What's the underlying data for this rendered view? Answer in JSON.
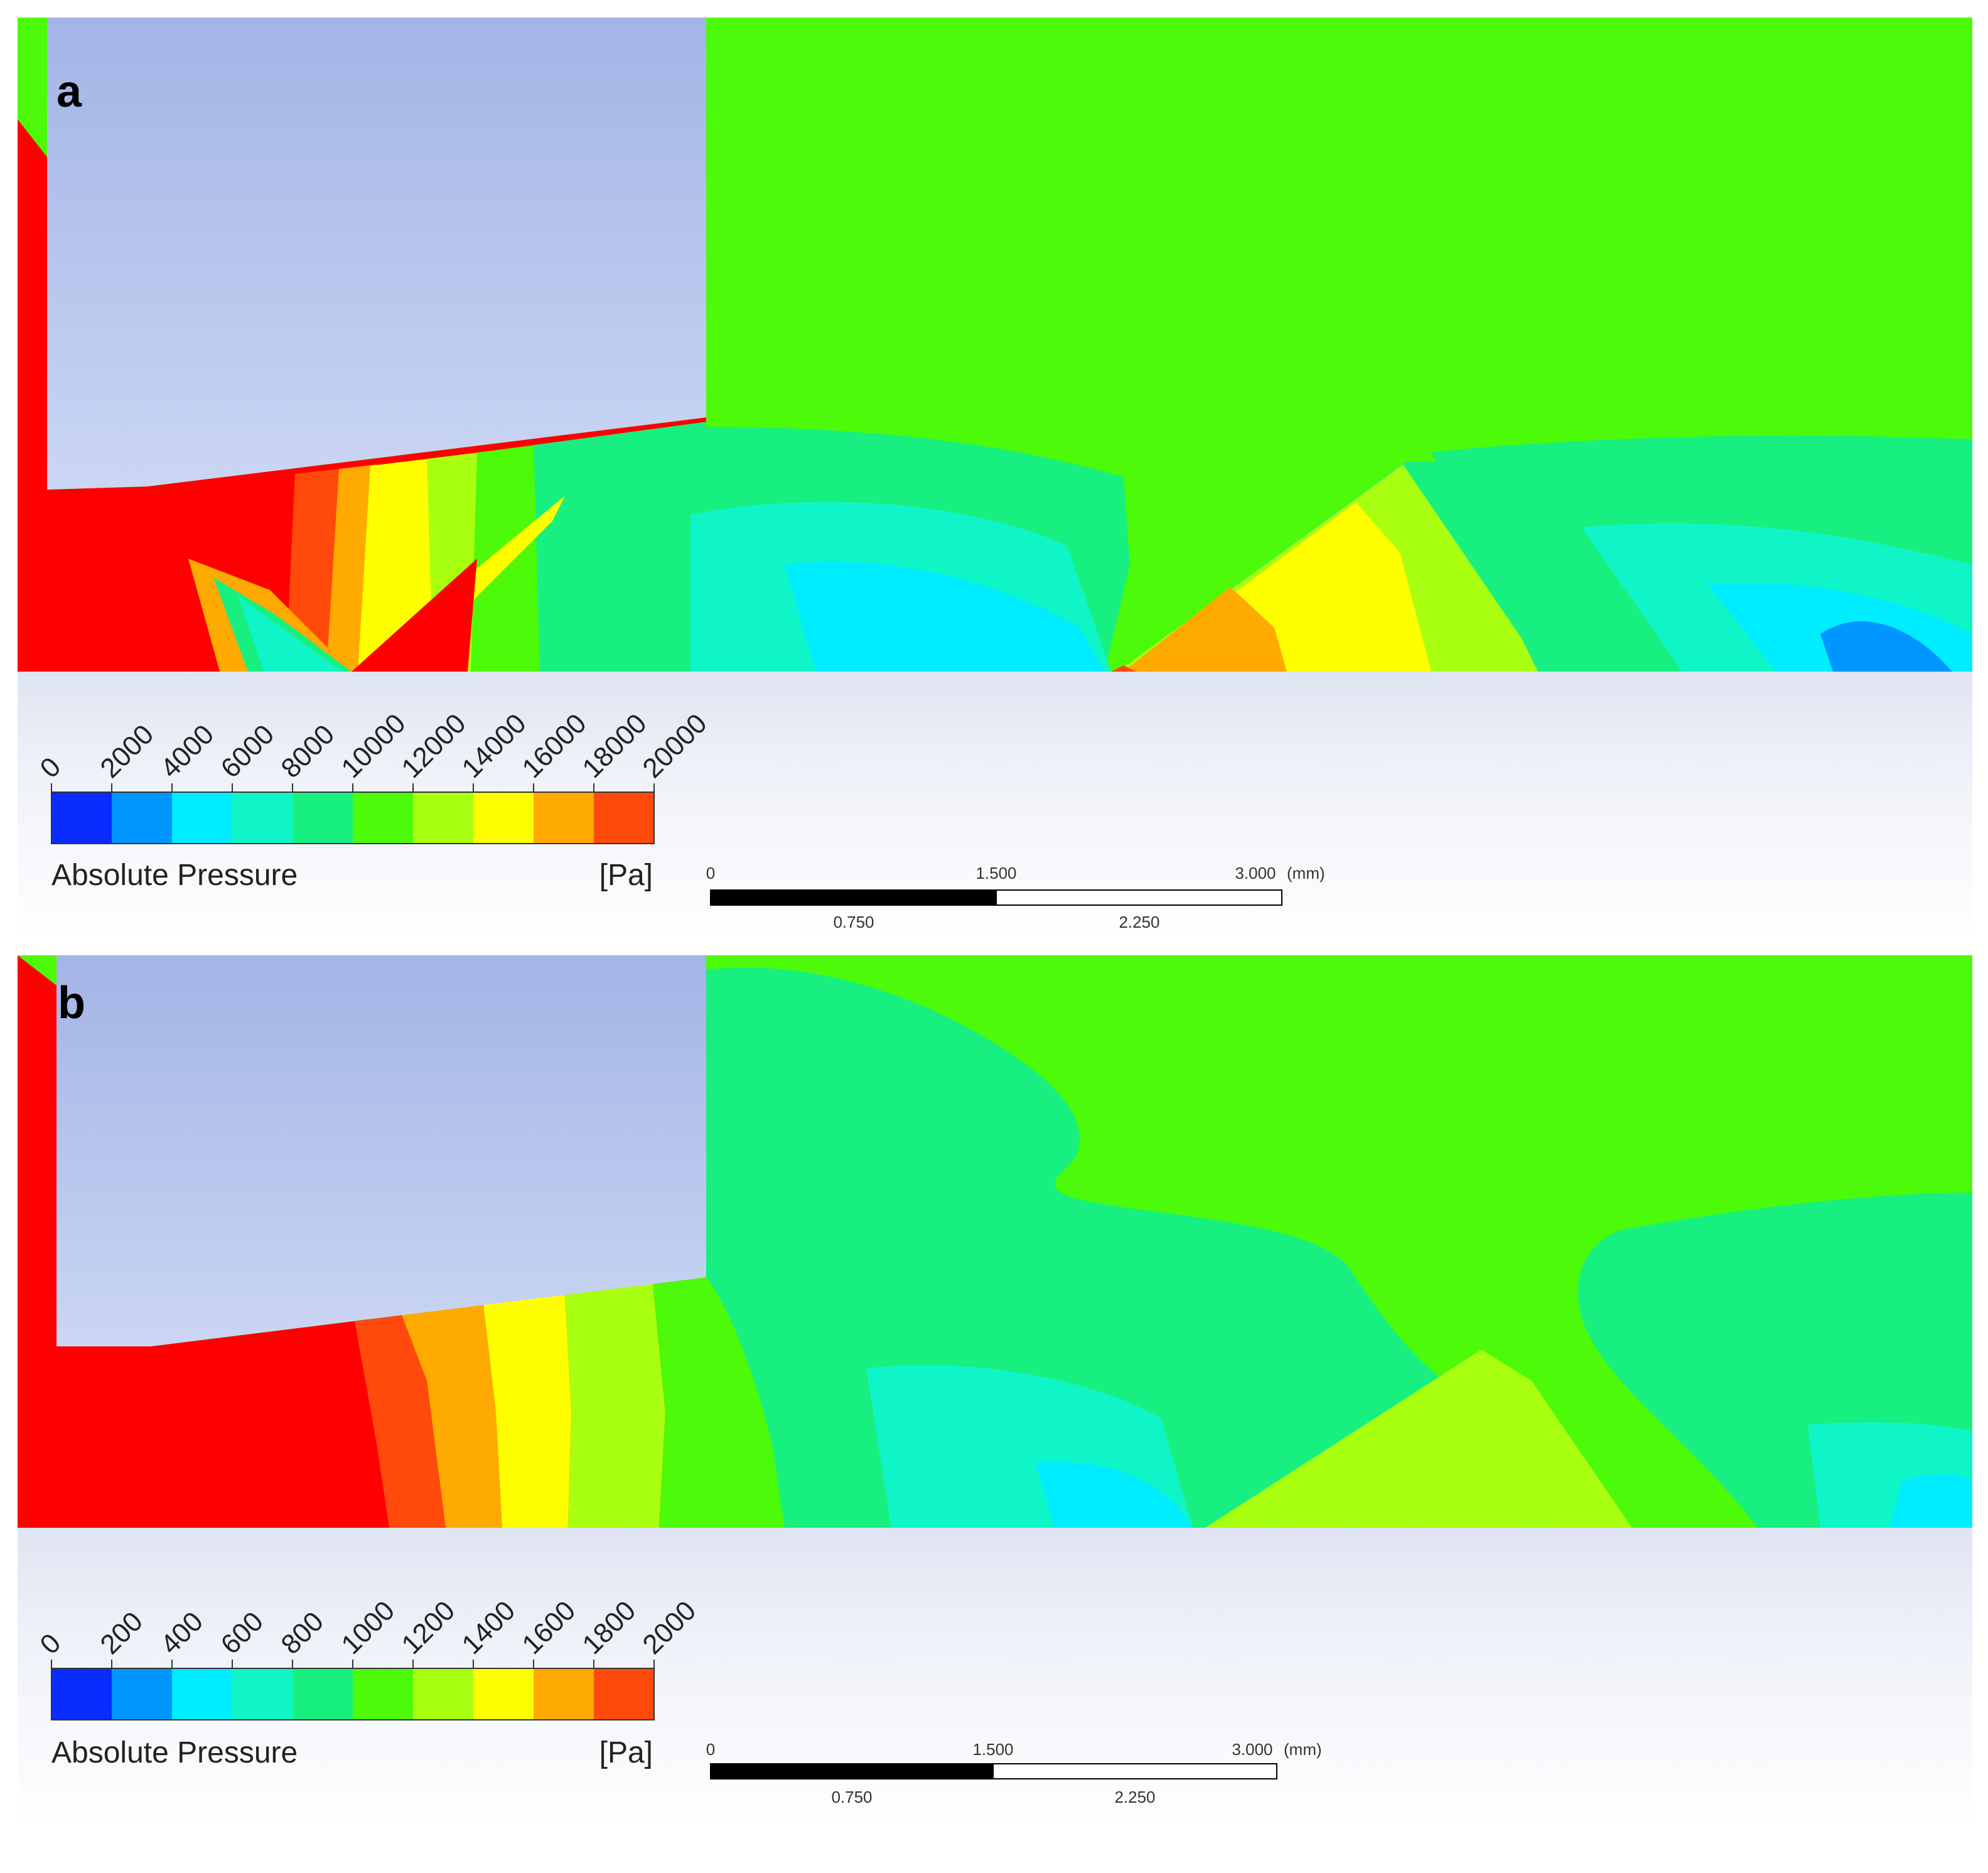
{
  "panels": [
    {
      "id": "a",
      "label": "a",
      "legend": {
        "title": "Absolute Pressure",
        "unit": "[Pa]",
        "ticks": [
          "0",
          "2000",
          "4000",
          "6000",
          "8000",
          "10000",
          "12000",
          "14000",
          "16000",
          "18000",
          "20000"
        ]
      },
      "scale_bar": {
        "top_labels": [
          "0",
          "1.500",
          "3.000"
        ],
        "bottom_labels": [
          "0.750",
          "2.250"
        ],
        "unit": "(mm)"
      }
    },
    {
      "id": "b",
      "label": "b",
      "legend": {
        "title": "Absolute Pressure",
        "unit": "[Pa]",
        "ticks": [
          "0",
          "200",
          "400",
          "600",
          "800",
          "1000",
          "1200",
          "1400",
          "1600",
          "1800",
          "2000"
        ]
      },
      "scale_bar": {
        "top_labels": [
          "0",
          "1.500",
          "3.000"
        ],
        "bottom_labels": [
          "0.750",
          "2.250"
        ],
        "unit": "(mm)"
      }
    }
  ],
  "colors": {
    "c0": "#0a2cff",
    "c1": "#0096ff",
    "c2": "#00ecff",
    "c3": "#10f5c8",
    "c4": "#17f080",
    "c5": "#4dfa09",
    "c6": "#a8ff10",
    "c7": "#ffff00",
    "c8": "#ffaa00",
    "c9": "#ff4a0c",
    "red": "#ff0000",
    "solid_top": "#a3b4e6",
    "solid_bottom": "#cbd6f3"
  }
}
